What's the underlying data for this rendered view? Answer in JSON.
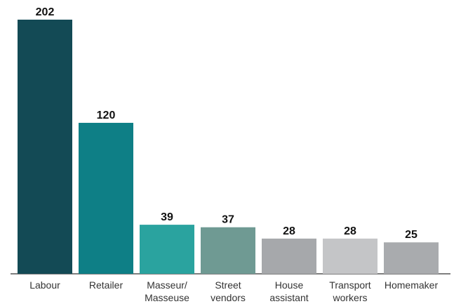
{
  "chart_data": {
    "type": "bar",
    "categories": [
      "Labour",
      "Retailer",
      "Masseur/\nMasseuse",
      "Street\nvendors",
      "House\nassistant",
      "Transport\nworkers",
      "Homemaker"
    ],
    "values": [
      202,
      120,
      39,
      37,
      28,
      28,
      25
    ],
    "colors": [
      "#134a55",
      "#0e7f86",
      "#2aa39f",
      "#6f9a93",
      "#a6a8ab",
      "#c4c5c7",
      "#a9abae"
    ]
  }
}
